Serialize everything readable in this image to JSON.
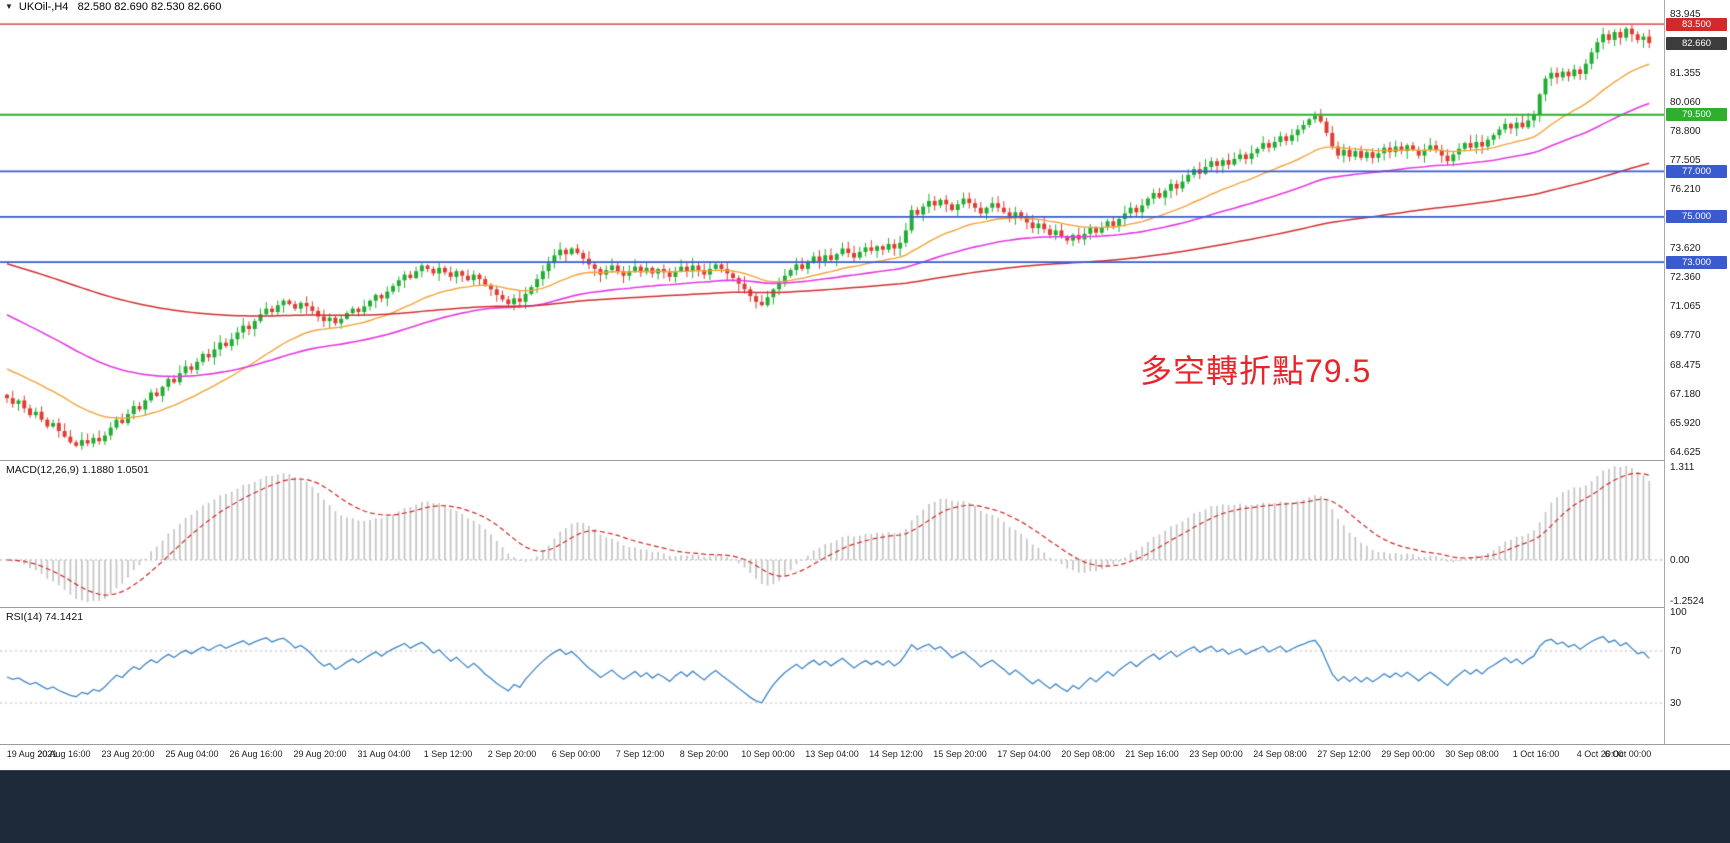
{
  "window": {
    "title": "UKOil-,H4   82.580 82.690 82.530 82.660"
  },
  "icons": {
    "symbol_dropdown": "▼"
  },
  "annotation": {
    "text": "多空轉折點79.5",
    "color": "#e8252a"
  },
  "price_scale": {
    "labels": [
      "83.945",
      "81.355",
      "80.060",
      "78.800",
      "77.505",
      "76.210",
      "73.620",
      "72.360",
      "71.065",
      "69.770",
      "68.475",
      "67.180",
      "65.920",
      "64.625"
    ],
    "badges": [
      {
        "text": "83.500",
        "color": "#d22a2a"
      },
      {
        "text": "82.660",
        "color": "#3c3c3c"
      },
      {
        "text": "79.500",
        "color": "#2fae2f"
      },
      {
        "text": "77.000",
        "color": "#3a5bd0"
      },
      {
        "text": "75.000",
        "color": "#3a5bd0"
      },
      {
        "text": "73.000",
        "color": "#3a5bd0"
      }
    ]
  },
  "indicators": {
    "macd": {
      "label": "MACD(12,26,9) 1.1880 1.0501",
      "scale_top": "1.311",
      "scale_zero": "0.00",
      "scale_bottom": "-1.2524"
    },
    "rsi": {
      "label": "RSI(14) 74.1421",
      "levels": [
        "100",
        "70",
        "30"
      ]
    }
  },
  "chart_data": {
    "type": "candlestick",
    "symbol": "UKOil",
    "timeframe": "H4",
    "quote": {
      "open": 82.58,
      "high": 82.69,
      "low": 82.53,
      "close": 82.66
    },
    "y_axis": {
      "min": 64.625,
      "max": 83.945
    },
    "levels": [
      {
        "price": 83.5,
        "color": "#d22a2a",
        "width": 1.4,
        "label": "83.500"
      },
      {
        "price": 79.5,
        "color": "#2fae2f",
        "width": 2,
        "label": "79.500"
      },
      {
        "price": 77.0,
        "color": "#3a5bd0",
        "width": 1.8,
        "label": "77.000"
      },
      {
        "price": 75.0,
        "color": "#3a5bd0",
        "width": 1.8,
        "label": "75.000"
      },
      {
        "price": 73.0,
        "color": "#3a5bd0",
        "width": 1.8,
        "label": "73.000"
      }
    ],
    "moving_averages": [
      {
        "period": 24,
        "seed": 68.4,
        "color": "#f2a33c",
        "width": 1.4
      },
      {
        "period": 60,
        "seed": 70.8,
        "color": "#e23ce2",
        "width": 1.6
      },
      {
        "period": 160,
        "seed": 73.0,
        "color": "#d03030",
        "width": 1.5
      }
    ],
    "macd": {
      "fast": 12,
      "slow": 26,
      "signal": 9,
      "current_main": 1.188,
      "current_signal": 1.0501,
      "display_max": 1.311,
      "display_min": -1.2524
    },
    "rsi": {
      "period": 14,
      "current": 74.1421
    },
    "colors": {
      "up": "#1fae32",
      "down": "#e03c31",
      "macd_hist": "#c6c6c6",
      "macd_signal": "#cf2b2b",
      "rsi_line": "#3f86c6"
    },
    "x_axis_labels": [
      "19 Aug 2021",
      "20 Aug 16:00",
      "23 Aug 20:00",
      "25 Aug 04:00",
      "26 Aug 16:00",
      "29 Aug 20:00",
      "31 Aug 04:00",
      "1 Sep 12:00",
      "2 Sep 20:00",
      "6 Sep 00:00",
      "7 Sep 12:00",
      "8 Sep 20:00",
      "10 Sep 00:00",
      "13 Sep 04:00",
      "14 Sep 12:00",
      "15 Sep 20:00",
      "17 Sep 04:00",
      "20 Sep 08:00",
      "21 Sep 16:00",
      "23 Sep 00:00",
      "24 Sep 08:00",
      "27 Sep 12:00",
      "29 Sep 00:00",
      "30 Sep 08:00",
      "1 Oct 16:00",
      "4 Oct 20:00",
      "6 Oct 00:00"
    ],
    "candles": {
      "first_open": 67.15,
      "closes": [
        67.0,
        66.75,
        66.9,
        66.55,
        66.25,
        66.4,
        66.05,
        65.75,
        65.9,
        65.55,
        65.3,
        65.05,
        64.9,
        65.15,
        65.0,
        65.25,
        65.1,
        65.35,
        65.7,
        66.05,
        65.9,
        66.3,
        66.65,
        66.5,
        66.9,
        67.25,
        67.1,
        67.5,
        67.85,
        67.7,
        68.1,
        68.4,
        68.25,
        68.6,
        68.95,
        68.8,
        69.15,
        69.45,
        69.3,
        69.6,
        69.9,
        70.2,
        70.05,
        70.4,
        70.7,
        70.95,
        70.8,
        71.1,
        71.3,
        71.15,
        70.95,
        71.2,
        71.05,
        70.85,
        70.6,
        70.4,
        70.55,
        70.3,
        70.5,
        70.75,
        70.95,
        70.8,
        71.05,
        71.3,
        71.55,
        71.4,
        71.7,
        71.95,
        72.2,
        72.45,
        72.3,
        72.6,
        72.85,
        72.7,
        72.5,
        72.75,
        72.55,
        72.35,
        72.6,
        72.4,
        72.2,
        72.45,
        72.25,
        72.0,
        71.8,
        71.55,
        71.35,
        71.15,
        71.4,
        71.25,
        71.6,
        71.9,
        72.25,
        72.6,
        72.95,
        73.3,
        73.55,
        73.35,
        73.6,
        73.4,
        73.15,
        72.9,
        72.7,
        72.45,
        72.65,
        72.85,
        72.6,
        72.4,
        72.6,
        72.8,
        72.55,
        72.75,
        72.5,
        72.7,
        72.55,
        72.35,
        72.6,
        72.8,
        72.6,
        72.85,
        72.65,
        72.45,
        72.7,
        72.9,
        72.7,
        72.5,
        72.3,
        72.05,
        71.8,
        71.5,
        71.25,
        71.1,
        71.45,
        71.8,
        72.1,
        72.4,
        72.65,
        72.9,
        72.7,
        73.0,
        73.25,
        73.05,
        73.3,
        73.1,
        73.35,
        73.6,
        73.4,
        73.2,
        73.45,
        73.65,
        73.5,
        73.7,
        73.55,
        73.8,
        73.6,
        73.85,
        74.4,
        75.3,
        75.1,
        75.45,
        75.7,
        75.5,
        75.75,
        75.55,
        75.3,
        75.55,
        75.8,
        75.6,
        75.4,
        75.15,
        75.4,
        75.6,
        75.4,
        75.2,
        74.95,
        75.2,
        75.0,
        74.75,
        74.5,
        74.7,
        74.45,
        74.2,
        74.4,
        74.15,
        73.95,
        74.2,
        74.0,
        74.25,
        74.5,
        74.3,
        74.55,
        74.8,
        74.6,
        74.9,
        75.15,
        75.4,
        75.2,
        75.5,
        75.8,
        76.05,
        75.85,
        76.15,
        76.45,
        76.25,
        76.55,
        76.85,
        77.1,
        76.9,
        77.2,
        77.45,
        77.25,
        77.5,
        77.3,
        77.55,
        77.75,
        77.55,
        77.8,
        78.0,
        78.25,
        78.05,
        78.3,
        78.55,
        78.35,
        78.6,
        78.85,
        79.05,
        79.3,
        79.45,
        79.2,
        78.7,
        78.1,
        77.7,
        77.95,
        77.65,
        77.9,
        77.6,
        77.85,
        77.6,
        77.8,
        78.05,
        77.85,
        78.1,
        77.9,
        78.15,
        77.95,
        77.7,
        77.95,
        78.15,
        77.95,
        77.7,
        77.45,
        77.75,
        78.0,
        78.25,
        78.05,
        78.3,
        78.1,
        78.4,
        78.6,
        78.85,
        79.1,
        78.9,
        79.15,
        78.95,
        79.25,
        79.5,
        80.4,
        81.1,
        81.35,
        81.15,
        81.4,
        81.2,
        81.5,
        81.3,
        81.75,
        82.25,
        82.7,
        83.05,
        82.8,
        83.15,
        82.9,
        83.3,
        83.05,
        82.8,
        82.95,
        82.66
      ]
    }
  }
}
